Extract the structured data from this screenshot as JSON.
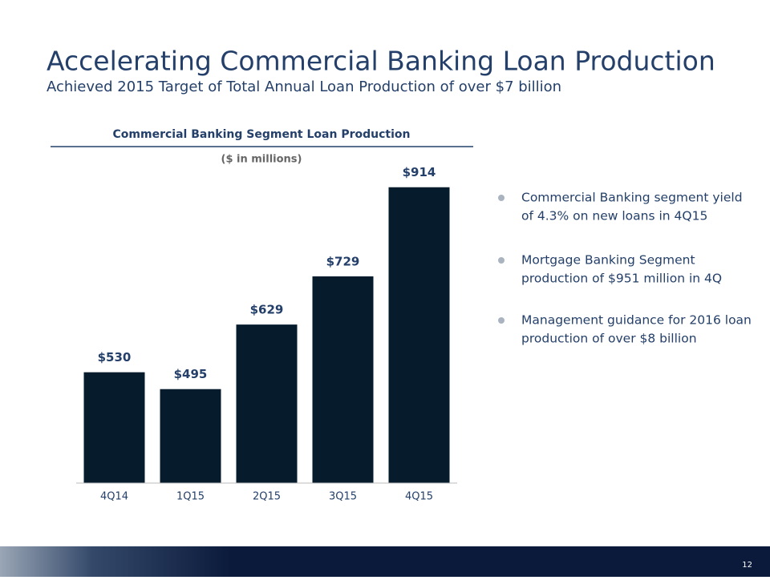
{
  "header": {
    "title": "Accelerating Commercial Banking Loan Production",
    "subtitle": "Achieved 2015 Target of Total Annual Loan Production of over $7 billion"
  },
  "chart_data": {
    "type": "bar",
    "title": "Commercial Banking Segment Loan Production",
    "subtitle": "($ in millions)",
    "categories": [
      "4Q14",
      "1Q15",
      "2Q15",
      "3Q15",
      "4Q15"
    ],
    "values": [
      530,
      495,
      629,
      729,
      914
    ],
    "value_labels": [
      "$530",
      "$495",
      "$629",
      "$729",
      "$914"
    ],
    "color": "#061c2d",
    "ylim": [
      300,
      1000
    ]
  },
  "bullets": [
    [
      "Commercial Banking segment yield",
      "of 4.3% on new loans in 4Q15"
    ],
    [
      "Mortgage Banking Segment",
      "production of $951 million in 4Q"
    ],
    [
      "Management guidance for 2016 loan",
      "production of over $8 billion"
    ]
  ],
  "footer": {
    "page_number": "12"
  }
}
